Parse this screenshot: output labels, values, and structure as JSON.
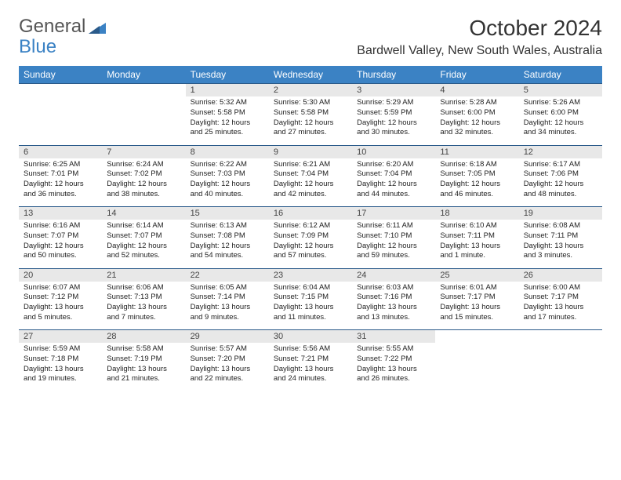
{
  "logo": {
    "text1": "General",
    "text2": "Blue"
  },
  "title": "October 2024",
  "location": "Bardwell Valley, New South Wales, Australia",
  "colors": {
    "header_bg": "#3b82c4",
    "header_text": "#ffffff",
    "daynum_bg": "#e8e8e8",
    "border": "#2a5a8a",
    "text": "#222222",
    "logo_gray": "#555555",
    "logo_blue": "#3b82c4"
  },
  "day_headers": [
    "Sunday",
    "Monday",
    "Tuesday",
    "Wednesday",
    "Thursday",
    "Friday",
    "Saturday"
  ],
  "weeks": [
    [
      null,
      null,
      {
        "n": "1",
        "sunrise": "5:32 AM",
        "sunset": "5:58 PM",
        "dl1": "12 hours",
        "dl2": "and 25 minutes."
      },
      {
        "n": "2",
        "sunrise": "5:30 AM",
        "sunset": "5:58 PM",
        "dl1": "12 hours",
        "dl2": "and 27 minutes."
      },
      {
        "n": "3",
        "sunrise": "5:29 AM",
        "sunset": "5:59 PM",
        "dl1": "12 hours",
        "dl2": "and 30 minutes."
      },
      {
        "n": "4",
        "sunrise": "5:28 AM",
        "sunset": "6:00 PM",
        "dl1": "12 hours",
        "dl2": "and 32 minutes."
      },
      {
        "n": "5",
        "sunrise": "5:26 AM",
        "sunset": "6:00 PM",
        "dl1": "12 hours",
        "dl2": "and 34 minutes."
      }
    ],
    [
      {
        "n": "6",
        "sunrise": "6:25 AM",
        "sunset": "7:01 PM",
        "dl1": "12 hours",
        "dl2": "and 36 minutes."
      },
      {
        "n": "7",
        "sunrise": "6:24 AM",
        "sunset": "7:02 PM",
        "dl1": "12 hours",
        "dl2": "and 38 minutes."
      },
      {
        "n": "8",
        "sunrise": "6:22 AM",
        "sunset": "7:03 PM",
        "dl1": "12 hours",
        "dl2": "and 40 minutes."
      },
      {
        "n": "9",
        "sunrise": "6:21 AM",
        "sunset": "7:04 PM",
        "dl1": "12 hours",
        "dl2": "and 42 minutes."
      },
      {
        "n": "10",
        "sunrise": "6:20 AM",
        "sunset": "7:04 PM",
        "dl1": "12 hours",
        "dl2": "and 44 minutes."
      },
      {
        "n": "11",
        "sunrise": "6:18 AM",
        "sunset": "7:05 PM",
        "dl1": "12 hours",
        "dl2": "and 46 minutes."
      },
      {
        "n": "12",
        "sunrise": "6:17 AM",
        "sunset": "7:06 PM",
        "dl1": "12 hours",
        "dl2": "and 48 minutes."
      }
    ],
    [
      {
        "n": "13",
        "sunrise": "6:16 AM",
        "sunset": "7:07 PM",
        "dl1": "12 hours",
        "dl2": "and 50 minutes."
      },
      {
        "n": "14",
        "sunrise": "6:14 AM",
        "sunset": "7:07 PM",
        "dl1": "12 hours",
        "dl2": "and 52 minutes."
      },
      {
        "n": "15",
        "sunrise": "6:13 AM",
        "sunset": "7:08 PM",
        "dl1": "12 hours",
        "dl2": "and 54 minutes."
      },
      {
        "n": "16",
        "sunrise": "6:12 AM",
        "sunset": "7:09 PM",
        "dl1": "12 hours",
        "dl2": "and 57 minutes."
      },
      {
        "n": "17",
        "sunrise": "6:11 AM",
        "sunset": "7:10 PM",
        "dl1": "12 hours",
        "dl2": "and 59 minutes."
      },
      {
        "n": "18",
        "sunrise": "6:10 AM",
        "sunset": "7:11 PM",
        "dl1": "13 hours",
        "dl2": "and 1 minute."
      },
      {
        "n": "19",
        "sunrise": "6:08 AM",
        "sunset": "7:11 PM",
        "dl1": "13 hours",
        "dl2": "and 3 minutes."
      }
    ],
    [
      {
        "n": "20",
        "sunrise": "6:07 AM",
        "sunset": "7:12 PM",
        "dl1": "13 hours",
        "dl2": "and 5 minutes."
      },
      {
        "n": "21",
        "sunrise": "6:06 AM",
        "sunset": "7:13 PM",
        "dl1": "13 hours",
        "dl2": "and 7 minutes."
      },
      {
        "n": "22",
        "sunrise": "6:05 AM",
        "sunset": "7:14 PM",
        "dl1": "13 hours",
        "dl2": "and 9 minutes."
      },
      {
        "n": "23",
        "sunrise": "6:04 AM",
        "sunset": "7:15 PM",
        "dl1": "13 hours",
        "dl2": "and 11 minutes."
      },
      {
        "n": "24",
        "sunrise": "6:03 AM",
        "sunset": "7:16 PM",
        "dl1": "13 hours",
        "dl2": "and 13 minutes."
      },
      {
        "n": "25",
        "sunrise": "6:01 AM",
        "sunset": "7:17 PM",
        "dl1": "13 hours",
        "dl2": "and 15 minutes."
      },
      {
        "n": "26",
        "sunrise": "6:00 AM",
        "sunset": "7:17 PM",
        "dl1": "13 hours",
        "dl2": "and 17 minutes."
      }
    ],
    [
      {
        "n": "27",
        "sunrise": "5:59 AM",
        "sunset": "7:18 PM",
        "dl1": "13 hours",
        "dl2": "and 19 minutes."
      },
      {
        "n": "28",
        "sunrise": "5:58 AM",
        "sunset": "7:19 PM",
        "dl1": "13 hours",
        "dl2": "and 21 minutes."
      },
      {
        "n": "29",
        "sunrise": "5:57 AM",
        "sunset": "7:20 PM",
        "dl1": "13 hours",
        "dl2": "and 22 minutes."
      },
      {
        "n": "30",
        "sunrise": "5:56 AM",
        "sunset": "7:21 PM",
        "dl1": "13 hours",
        "dl2": "and 24 minutes."
      },
      {
        "n": "31",
        "sunrise": "5:55 AM",
        "sunset": "7:22 PM",
        "dl1": "13 hours",
        "dl2": "and 26 minutes."
      },
      null,
      null
    ]
  ],
  "labels": {
    "sunrise": "Sunrise:",
    "sunset": "Sunset:",
    "daylight": "Daylight:"
  }
}
